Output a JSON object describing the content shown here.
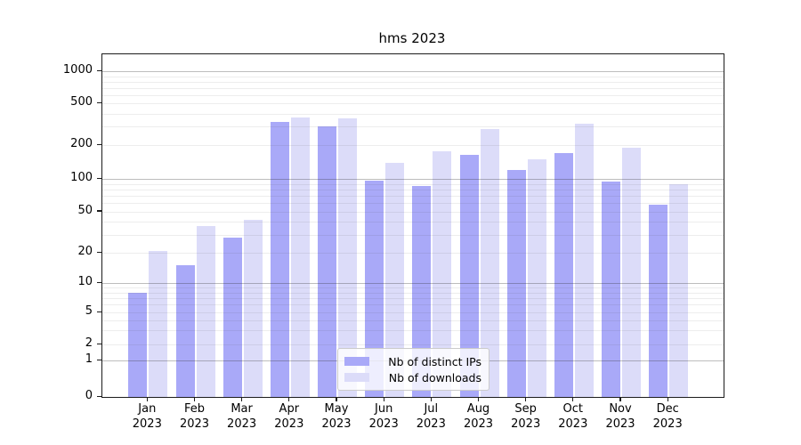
{
  "title": "hms 2023",
  "chart_data": {
    "type": "bar",
    "title": "hms 2023",
    "yscale": "symlog",
    "grid": "horizontal",
    "ylim": [
      0,
      1450
    ],
    "ytick_labels": [
      0,
      1,
      2,
      5,
      10,
      20,
      50,
      100,
      200,
      500,
      1000
    ],
    "categories": [
      "Jan",
      "Feb",
      "Mar",
      "Apr",
      "May",
      "Jun",
      "Jul",
      "Aug",
      "Sep",
      "Oct",
      "Nov",
      "Dec"
    ],
    "category_year": "2023",
    "legend_position": "lower-center",
    "series": [
      {
        "name": "Nb of distinct IPs",
        "color": "#a9a9f8",
        "values": [
          8,
          15,
          28,
          335,
          300,
          96,
          86,
          165,
          120,
          170,
          95,
          58
        ]
      },
      {
        "name": "Nb of downloads",
        "color": "#dcdcf9",
        "values": [
          21,
          36,
          42,
          365,
          360,
          140,
          176,
          285,
          150,
          320,
          190,
          90
        ]
      }
    ]
  },
  "colors": {
    "background": "#ffffff",
    "spine": "#1c1c1c",
    "major_grid": "#b5b5b5",
    "minor_grid": "#ececec",
    "legend_border": "#cbcbcb"
  }
}
